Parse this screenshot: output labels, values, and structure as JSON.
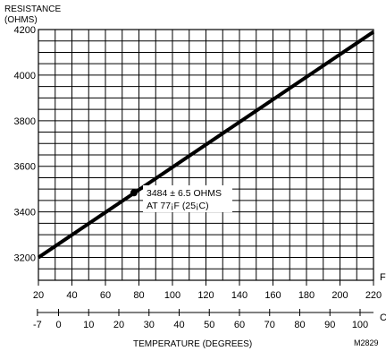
{
  "chart_data": {
    "type": "line",
    "ylabel_line1": "RESISTANCE",
    "ylabel_line2": "(OHMS)",
    "ylim": [
      3100,
      4200
    ],
    "yticks": [
      3200,
      3400,
      3600,
      3800,
      4000,
      4200
    ],
    "x_unit_f": "F",
    "xlim_f": [
      20,
      220
    ],
    "xticks_f": [
      20,
      40,
      60,
      80,
      100,
      120,
      140,
      160,
      180,
      200,
      220
    ],
    "x_unit_c": "C",
    "xticks_c": [
      -7,
      0,
      10,
      20,
      30,
      40,
      50,
      60,
      70,
      80,
      90,
      100
    ],
    "xlabel": "TEMPERATURE (DEGREES)",
    "grid": true,
    "series": [
      {
        "x": [
          20,
          220
        ],
        "y": [
          3200,
          4190
        ]
      }
    ],
    "marker": {
      "x": 77,
      "y": 3484
    },
    "annotation_line1": "3484 ± 6.5 OHMS",
    "annotation_line2": "AT 77¡F (25¡C)",
    "figure_id": "M2829"
  }
}
